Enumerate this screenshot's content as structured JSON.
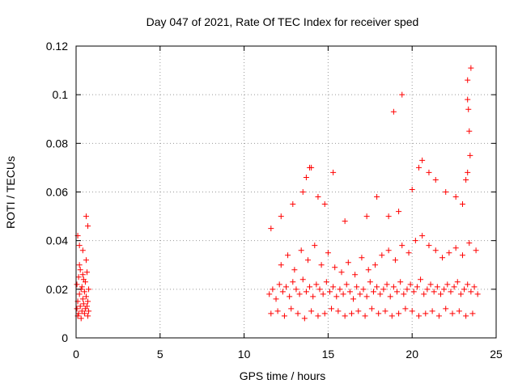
{
  "chart_data": {
    "type": "scatter",
    "title": "Day 047 of 2021, Rate Of TEC Index for receiver sped",
    "xlabel": "GPS time / hours",
    "ylabel": "ROTI / TECUs",
    "xlim": [
      0,
      25
    ],
    "ylim": [
      0,
      0.12
    ],
    "xticks": [
      "0",
      "5",
      "10",
      "15",
      "20",
      "25"
    ],
    "yticks": [
      "0",
      "0.02",
      "0.04",
      "0.06",
      "0.08",
      "0.1",
      "0.12"
    ],
    "grid": true,
    "legend": "none",
    "marker": "+",
    "color": "#ff0000",
    "series": [
      {
        "x": [
          0.05,
          0.1,
          0.15,
          0.2,
          0.25,
          0.3,
          0.35,
          0.4,
          0.45,
          0.5,
          0.55,
          0.6,
          0.65,
          0.7,
          0.75,
          0.05,
          0.15,
          0.25,
          0.35,
          0.45,
          0.55,
          0.65,
          0.75,
          0.1,
          0.3,
          0.5,
          0.7,
          0.2,
          0.4,
          0.6,
          11.5,
          11.7,
          11.9,
          12.1,
          12.3,
          12.5,
          12.7,
          12.9,
          13.1,
          13.3,
          13.5,
          13.7,
          13.9,
          14.1,
          14.3,
          14.5,
          14.7,
          14.9,
          15.1,
          15.3,
          15.5,
          15.7,
          15.9,
          16.1,
          16.3,
          16.5,
          16.7,
          16.9,
          17.1,
          17.3,
          17.5,
          17.7,
          17.9,
          18.1,
          18.3,
          18.5,
          18.7,
          18.9,
          19.1,
          19.3,
          19.5,
          19.7,
          19.9,
          20.1,
          20.3,
          20.5,
          20.7,
          20.9,
          21.1,
          21.3,
          21.5,
          21.7,
          21.9,
          22.1,
          22.3,
          22.5,
          22.7,
          22.9,
          23.1,
          23.3,
          23.5,
          23.7,
          23.9,
          11.6,
          12.0,
          12.4,
          12.8,
          13.2,
          13.6,
          14.0,
          14.4,
          14.8,
          15.2,
          15.6,
          16.0,
          16.4,
          16.8,
          17.2,
          17.6,
          18.0,
          18.4,
          18.8,
          19.2,
          19.6,
          20.0,
          20.4,
          20.8,
          21.2,
          21.6,
          22.0,
          22.4,
          22.8,
          23.2,
          23.6,
          12.2,
          12.6,
          13.0,
          13.4,
          13.8,
          14.2,
          14.6,
          15.0,
          15.4,
          15.8,
          16.2,
          16.6,
          17.0,
          17.4,
          17.8,
          18.2,
          18.6,
          19.0,
          19.4,
          19.8,
          20.2,
          20.6,
          21.0,
          21.4,
          21.8,
          22.2,
          22.6,
          23.0,
          23.4,
          23.8,
          11.6,
          12.2,
          12.9,
          13.5,
          13.7,
          13.9,
          14.0,
          14.4,
          14.8,
          15.3,
          16.0,
          17.3,
          17.9,
          18.6,
          18.9,
          19.2,
          19.4,
          20.0,
          20.4,
          20.6,
          21.0,
          21.4,
          22.0,
          22.6,
          23.0,
          23.3,
          23.35,
          23.4,
          23.45,
          23.5,
          23.3,
          23.2,
          23.3,
          0.1,
          0.2,
          0.4,
          0.6,
          0.7
        ],
        "y": [
          0.012,
          0.015,
          0.01,
          0.018,
          0.013,
          0.02,
          0.011,
          0.016,
          0.014,
          0.019,
          0.012,
          0.017,
          0.013,
          0.015,
          0.011,
          0.022,
          0.025,
          0.028,
          0.021,
          0.024,
          0.023,
          0.027,
          0.02,
          0.009,
          0.008,
          0.01,
          0.009,
          0.03,
          0.026,
          0.032,
          0.018,
          0.02,
          0.016,
          0.022,
          0.019,
          0.021,
          0.017,
          0.023,
          0.02,
          0.018,
          0.024,
          0.019,
          0.021,
          0.017,
          0.022,
          0.02,
          0.018,
          0.023,
          0.019,
          0.021,
          0.017,
          0.02,
          0.018,
          0.022,
          0.019,
          0.016,
          0.021,
          0.018,
          0.02,
          0.017,
          0.023,
          0.019,
          0.021,
          0.018,
          0.02,
          0.022,
          0.017,
          0.021,
          0.019,
          0.023,
          0.018,
          0.02,
          0.022,
          0.019,
          0.021,
          0.024,
          0.018,
          0.02,
          0.022,
          0.019,
          0.021,
          0.018,
          0.02,
          0.022,
          0.019,
          0.021,
          0.023,
          0.018,
          0.02,
          0.022,
          0.019,
          0.021,
          0.018,
          0.01,
          0.011,
          0.009,
          0.012,
          0.01,
          0.008,
          0.011,
          0.009,
          0.01,
          0.012,
          0.011,
          0.009,
          0.01,
          0.011,
          0.009,
          0.012,
          0.01,
          0.011,
          0.009,
          0.01,
          0.012,
          0.011,
          0.009,
          0.01,
          0.011,
          0.009,
          0.012,
          0.01,
          0.011,
          0.009,
          0.01,
          0.03,
          0.034,
          0.028,
          0.036,
          0.032,
          0.038,
          0.03,
          0.035,
          0.029,
          0.027,
          0.031,
          0.026,
          0.033,
          0.028,
          0.03,
          0.034,
          0.036,
          0.032,
          0.038,
          0.035,
          0.04,
          0.042,
          0.038,
          0.036,
          0.033,
          0.035,
          0.037,
          0.034,
          0.039,
          0.036,
          0.045,
          0.05,
          0.055,
          0.06,
          0.066,
          0.07,
          0.07,
          0.058,
          0.055,
          0.068,
          0.048,
          0.05,
          0.058,
          0.05,
          0.093,
          0.052,
          0.1,
          0.061,
          0.07,
          0.073,
          0.068,
          0.065,
          0.06,
          0.058,
          0.055,
          0.098,
          0.094,
          0.085,
          0.075,
          0.111,
          0.106,
          0.065,
          0.068,
          0.042,
          0.038,
          0.036,
          0.05,
          0.046
        ]
      }
    ]
  }
}
